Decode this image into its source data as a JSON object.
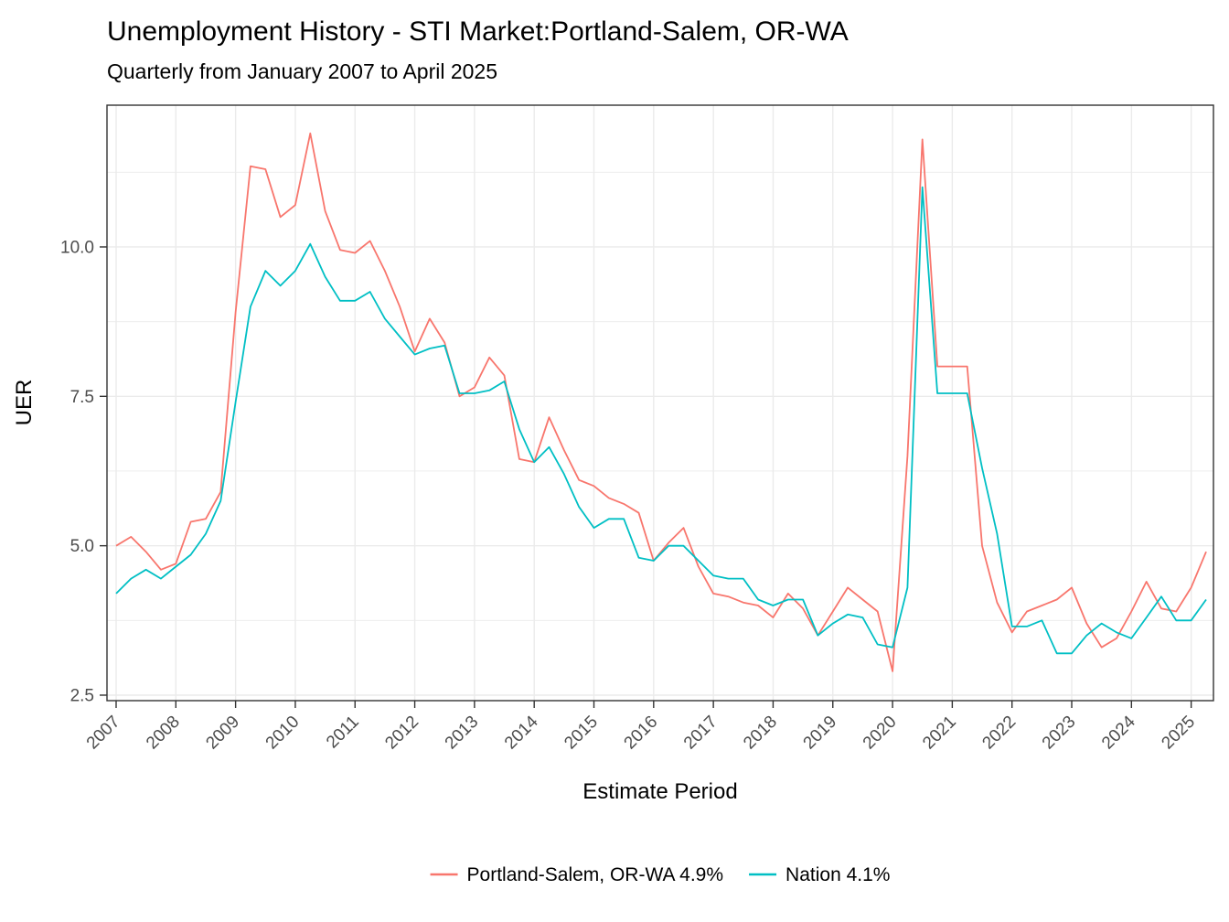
{
  "chart_data": {
    "type": "line",
    "title": "Unemployment History - STI Market:Portland-Salem, OR-WA",
    "subtitle": "Quarterly from January 2007 to April 2025",
    "xlabel": "Estimate Period",
    "ylabel": "UER",
    "x_start": 2007.0,
    "x_step": 0.25,
    "x_ticks": [
      2007,
      2008,
      2009,
      2010,
      2011,
      2012,
      2013,
      2014,
      2015,
      2016,
      2017,
      2018,
      2019,
      2020,
      2021,
      2022,
      2023,
      2024,
      2025
    ],
    "y_ticks": [
      "2.5",
      "5.0",
      "7.5",
      "10.0"
    ],
    "y_tick_values": [
      2.5,
      5.0,
      7.5,
      10.0
    ],
    "y_minor": [
      3.75,
      6.25,
      8.75,
      11.25
    ],
    "xlim": [
      2006.847,
      2025.373
    ],
    "ylim": [
      2.408,
      12.372
    ],
    "grid": "horizontal major+minor, vertical major (years), color #ebebeb, white panel, dark panel border",
    "legend_position": "bottom-center",
    "series": [
      {
        "name": "Portland-Salem, OR-WA 4.9%",
        "color": "#F8766D",
        "current_value": "4.9%",
        "values": [
          5.0,
          5.15,
          4.9,
          4.6,
          4.7,
          5.4,
          5.45,
          5.9,
          8.9,
          11.35,
          11.3,
          10.5,
          10.7,
          11.9,
          10.6,
          9.95,
          9.9,
          10.1,
          9.6,
          9.0,
          8.25,
          8.8,
          8.4,
          7.5,
          7.65,
          8.15,
          7.85,
          6.45,
          6.4,
          7.15,
          6.6,
          6.1,
          6.0,
          5.8,
          5.7,
          5.55,
          4.75,
          5.05,
          5.3,
          4.65,
          4.2,
          4.15,
          4.05,
          4.0,
          3.8,
          4.2,
          3.95,
          3.5,
          3.9,
          4.3,
          4.1,
          3.9,
          2.9,
          6.5,
          11.8,
          8.0,
          8.0,
          8.0,
          5.0,
          4.05,
          3.55,
          3.9,
          4.0,
          4.1,
          4.3,
          3.7,
          3.3,
          3.45,
          3.9,
          4.4,
          3.95,
          3.9,
          4.3,
          4.9
        ]
      },
      {
        "name": "Nation 4.1%",
        "color": "#00BFC4",
        "current_value": "4.1%",
        "values": [
          4.2,
          4.45,
          4.6,
          4.45,
          4.65,
          4.85,
          5.2,
          5.75,
          7.4,
          9.0,
          9.6,
          9.35,
          9.6,
          10.05,
          9.5,
          9.1,
          9.1,
          9.25,
          8.8,
          8.5,
          8.2,
          8.3,
          8.35,
          7.55,
          7.55,
          7.6,
          7.75,
          6.95,
          6.4,
          6.65,
          6.2,
          5.65,
          5.3,
          5.45,
          5.45,
          4.8,
          4.75,
          5.0,
          5.0,
          4.75,
          4.5,
          4.45,
          4.45,
          4.1,
          4.0,
          4.1,
          4.1,
          3.5,
          3.7,
          3.85,
          3.8,
          3.35,
          3.3,
          4.3,
          11.0,
          7.55,
          7.55,
          7.55,
          6.3,
          5.2,
          3.65,
          3.65,
          3.75,
          3.2,
          3.2,
          3.5,
          3.7,
          3.55,
          3.45,
          3.8,
          4.15,
          3.75,
          3.75,
          4.1
        ]
      }
    ],
    "colors": {
      "grid": "#ebebeb",
      "panel_border": "#333333",
      "tick": "#333333",
      "tick_label": "#4d4d4d",
      "text": "#000000",
      "background": "#ffffff"
    }
  }
}
